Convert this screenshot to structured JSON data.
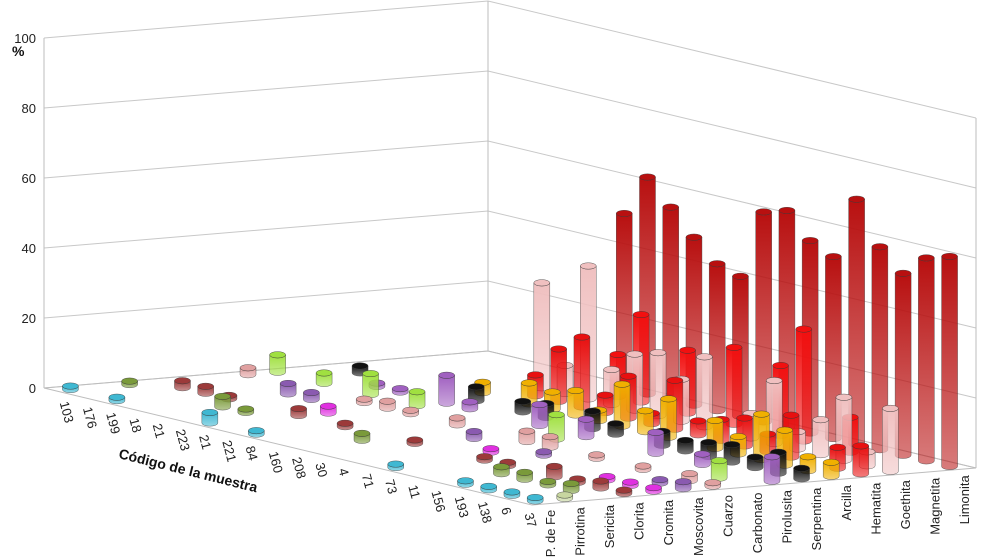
{
  "chart_data": {
    "type": "bar",
    "subtype": "3d-cylinder",
    "title": "",
    "xlabel": "Código de la muestra",
    "ylabel": "%",
    "ylim": [
      0,
      100
    ],
    "yticks": [
      0,
      20,
      40,
      60,
      80,
      100
    ],
    "grid": true,
    "legend": "none",
    "categories": [
      "103",
      "176",
      "199",
      "18",
      "21",
      "223",
      "21",
      "221",
      "84",
      "160",
      "208",
      "30",
      "4",
      "71",
      "73",
      "11",
      "156",
      "193",
      "138",
      "6",
      "37"
    ],
    "series": [
      {
        "name": "P. de Fe",
        "color": "#3fb8d2",
        "values": [
          1,
          0,
          1,
          0,
          0,
          0,
          3,
          0,
          1,
          0,
          0,
          0,
          0,
          0,
          1,
          0,
          0,
          1,
          1,
          1,
          1
        ]
      },
      {
        "name": "Pirrotina",
        "color": "#c8d6a0",
        "values": [
          0,
          0,
          0,
          0,
          0,
          0,
          0,
          0,
          0,
          0,
          0,
          0,
          0,
          0,
          0,
          0,
          0,
          0,
          0,
          0,
          1
        ]
      },
      {
        "name": "Sericita",
        "color": "#7a9a3a",
        "values": [
          1,
          0,
          0,
          0,
          3,
          1,
          0,
          0,
          0,
          0,
          2,
          0,
          0,
          0,
          0,
          0,
          2,
          2,
          1,
          2,
          0
        ]
      },
      {
        "name": "Clorita",
        "color": "#9c3a3a",
        "values": [
          0,
          2,
          2,
          1,
          0,
          0,
          2,
          0,
          1,
          0,
          0,
          1,
          0,
          0,
          1,
          1,
          0,
          3,
          1,
          2,
          1
        ]
      },
      {
        "name": "Cromita",
        "color": "#e030e0",
        "values": [
          0,
          0,
          0,
          0,
          0,
          0,
          2,
          0,
          0,
          0,
          0,
          0,
          0,
          1,
          0,
          0,
          0,
          0,
          1,
          1,
          1
        ]
      },
      {
        "name": "Moscovita",
        "color": "#8a5ab0",
        "values": [
          0,
          0,
          0,
          3,
          2,
          0,
          0,
          0,
          0,
          0,
          0,
          2,
          0,
          0,
          1,
          0,
          0,
          0,
          0,
          1,
          2
        ]
      },
      {
        "name": "Cuarzo",
        "color": "#e0a0a0",
        "values": [
          2,
          0,
          0,
          0,
          0,
          1,
          2,
          1,
          0,
          2,
          0,
          0,
          3,
          3,
          0,
          1,
          0,
          1,
          0,
          2,
          1
        ]
      },
      {
        "name": "Carbonato",
        "color": "#a0e040",
        "values": [
          5,
          0,
          3,
          0,
          6,
          0,
          4,
          0,
          0,
          0,
          0,
          0,
          7,
          0,
          0,
          0,
          0,
          0,
          0,
          5,
          0
        ]
      },
      {
        "name": "Pirolusita",
        "color": "#a060c0",
        "values": [
          0,
          0,
          0,
          1,
          1,
          0,
          8,
          2,
          0,
          0,
          6,
          0,
          5,
          0,
          0,
          6,
          0,
          3,
          0,
          0,
          7
        ]
      },
      {
        "name": "Serpentina",
        "color": "#111111",
        "values": [
          0,
          2,
          0,
          0,
          0,
          0,
          4,
          0,
          3,
          4,
          0,
          5,
          3,
          0,
          4,
          3,
          4,
          5,
          3,
          6,
          3
        ]
      },
      {
        "name": "Arcilla",
        "color": "#f0b000",
        "values": [
          0,
          0,
          0,
          0,
          0,
          3,
          0,
          6,
          5,
          7,
          3,
          12,
          6,
          11,
          0,
          8,
          5,
          13,
          10,
          4,
          4
        ]
      },
      {
        "name": "Hematita",
        "color": "#e81010",
        "values": [
          0,
          0,
          0,
          0,
          0,
          0,
          6,
          15,
          20,
          5,
          12,
          3,
          14,
          4,
          6,
          8,
          5,
          12,
          0,
          6,
          8
        ]
      },
      {
        "name": "Goethita",
        "color": "#f0c0c0",
        "values": [
          0,
          0,
          0,
          0,
          0,
          30,
          8,
          38,
          10,
          16,
          18,
          12,
          20,
          0,
          7,
          18,
          5,
          10,
          18,
          4,
          18
        ]
      },
      {
        "name": "Magnetita",
        "color": "#f21010",
        "values": [
          0,
          0,
          0,
          0,
          0,
          0,
          0,
          12,
          25,
          0,
          18,
          0,
          22,
          0,
          20,
          32,
          0,
          10,
          0,
          0,
          0
        ]
      },
      {
        "name": "Limonita",
        "color": "#b81010",
        "values": [
          0,
          0,
          0,
          0,
          0,
          0,
          50,
          62,
          55,
          48,
          42,
          40,
          60,
          62,
          55,
          52,
          70,
          58,
          52,
          58,
          60
        ]
      }
    ]
  }
}
